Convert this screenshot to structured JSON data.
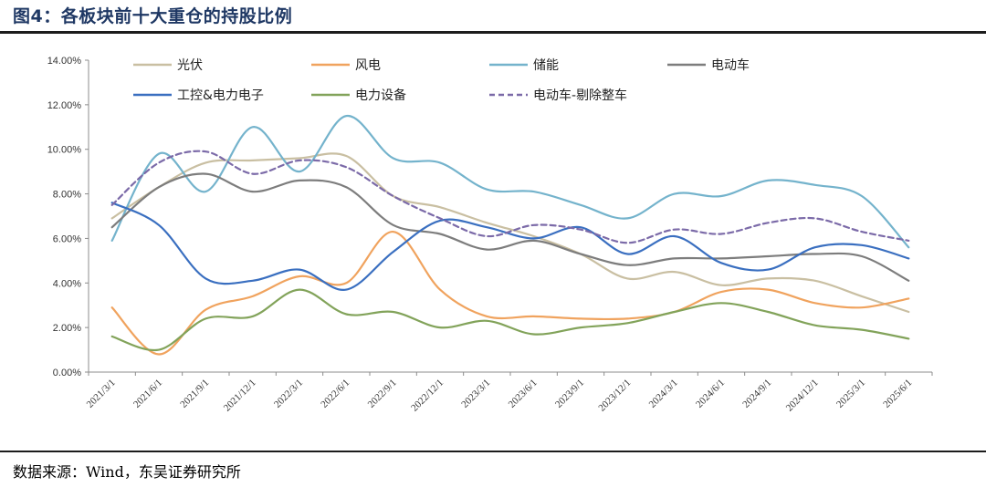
{
  "figure": {
    "title": "图4：各板块前十大重仓的持股比例",
    "source": "数据来源：Wind，东吴证券研究所"
  },
  "chart_data": {
    "type": "line",
    "x": [
      "2021/3/1",
      "2021/6/1",
      "2021/9/1",
      "2021/12/1",
      "2022/3/1",
      "2022/6/1",
      "2022/9/1",
      "2022/12/1",
      "2023/3/1",
      "2023/6/1",
      "2023/9/1",
      "2023/12/1",
      "2024/3/1",
      "2024/6/1",
      "2024/9/1",
      "2024/12/1",
      "2025/3/1",
      "2025/6/1"
    ],
    "ylim": [
      0,
      0.14
    ],
    "yticks": [
      "0.00%",
      "2.00%",
      "4.00%",
      "6.00%",
      "8.00%",
      "10.00%",
      "12.00%",
      "14.00%"
    ],
    "ytick_values": [
      0,
      0.02,
      0.04,
      0.06,
      0.08,
      0.1,
      0.12,
      0.14
    ],
    "grid": false,
    "legend_placement": "top",
    "series": [
      {
        "name": "光伏",
        "color": "#c9bfa2",
        "dash": false,
        "values": [
          0.069,
          0.083,
          0.094,
          0.095,
          0.096,
          0.097,
          0.079,
          0.074,
          0.067,
          0.061,
          0.053,
          0.042,
          0.045,
          0.039,
          0.042,
          0.041,
          0.034,
          0.027
        ]
      },
      {
        "name": "风电",
        "color": "#f0a35e",
        "dash": false,
        "values": [
          0.029,
          0.008,
          0.028,
          0.034,
          0.043,
          0.04,
          0.063,
          0.037,
          0.025,
          0.025,
          0.024,
          0.024,
          0.027,
          0.036,
          0.037,
          0.031,
          0.029,
          0.033
        ]
      },
      {
        "name": "储能",
        "color": "#74b3cc",
        "dash": false,
        "values": [
          0.059,
          0.098,
          0.081,
          0.11,
          0.09,
          0.115,
          0.096,
          0.094,
          0.082,
          0.081,
          0.075,
          0.069,
          0.08,
          0.079,
          0.086,
          0.084,
          0.079,
          0.056
        ]
      },
      {
        "name": "电动车",
        "color": "#7d7d7d",
        "dash": false,
        "values": [
          0.065,
          0.083,
          0.089,
          0.081,
          0.086,
          0.083,
          0.066,
          0.062,
          0.055,
          0.059,
          0.053,
          0.048,
          0.051,
          0.051,
          0.052,
          0.053,
          0.052,
          0.041
        ]
      },
      {
        "name": "工控&电力电子",
        "color": "#3a6fc0",
        "dash": false,
        "values": [
          0.076,
          0.066,
          0.042,
          0.041,
          0.046,
          0.037,
          0.054,
          0.068,
          0.065,
          0.06,
          0.065,
          0.053,
          0.061,
          0.049,
          0.046,
          0.056,
          0.057,
          0.051
        ]
      },
      {
        "name": "电力设备",
        "color": "#82a35a",
        "dash": false,
        "values": [
          0.016,
          0.01,
          0.024,
          0.025,
          0.037,
          0.026,
          0.027,
          0.02,
          0.023,
          0.017,
          0.02,
          0.022,
          0.027,
          0.031,
          0.027,
          0.021,
          0.019,
          0.015
        ]
      },
      {
        "name": "电动车-剔除整车",
        "color": "#7b6aa8",
        "dash": true,
        "values": [
          0.075,
          0.094,
          0.099,
          0.089,
          0.095,
          0.092,
          0.079,
          0.069,
          0.061,
          0.066,
          0.064,
          0.058,
          0.064,
          0.062,
          0.067,
          0.069,
          0.063,
          0.059
        ]
      }
    ]
  }
}
